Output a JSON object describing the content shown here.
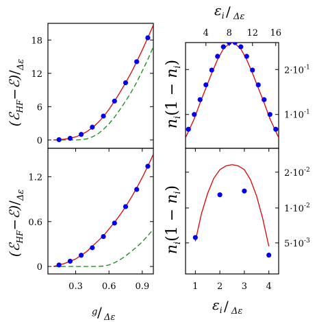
{
  "chart_data": [
    {
      "panel": "top-left",
      "type": "scatter",
      "ylabel": "(ℰHF−ℰ)/Δε",
      "ylim": [
        -1.5,
        21
      ],
      "xlim": [
        0.05,
        1.0
      ],
      "yticks": [
        "0",
        "6",
        "12",
        "18"
      ],
      "ytick_values": [
        0,
        6,
        12,
        18
      ],
      "colors": {
        "points": "#0000ee",
        "solid": "#dd0000",
        "dashed": "#118811"
      },
      "points": {
        "x": [
          0.15,
          0.25,
          0.35,
          0.45,
          0.55,
          0.65,
          0.75,
          0.85,
          0.95
        ],
        "y": [
          0.05,
          0.3,
          1.0,
          2.3,
          4.3,
          7.0,
          10.3,
          14.1,
          18.4
        ]
      },
      "solid_curve": {
        "x": [
          0.1,
          0.15,
          0.2,
          0.25,
          0.3,
          0.35,
          0.4,
          0.45,
          0.5,
          0.55,
          0.6,
          0.65,
          0.7,
          0.75,
          0.8,
          0.85,
          0.9,
          0.95,
          1.0
        ],
        "y": [
          0,
          0.05,
          0.15,
          0.3,
          0.55,
          0.95,
          1.5,
          2.2,
          3.1,
          4.2,
          5.5,
          7.0,
          8.6,
          10.3,
          12.1,
          14.1,
          16.2,
          18.4,
          20.7
        ]
      },
      "dashed_curve": {
        "x": [
          0.1,
          0.2,
          0.3,
          0.35,
          0.4,
          0.45,
          0.5,
          0.55,
          0.6,
          0.65,
          0.7,
          0.75,
          0.8,
          0.85,
          0.9,
          0.95,
          1.0
        ],
        "y": [
          0,
          0,
          0,
          0.05,
          0.2,
          0.55,
          1.1,
          1.9,
          2.9,
          4.1,
          5.5,
          7.0,
          8.6,
          10.4,
          12.4,
          14.5,
          16.8
        ]
      }
    },
    {
      "panel": "bottom-left",
      "type": "scatter",
      "xlabel": "g/Δε",
      "ylabel": "(ℰHF−ℰ)/Δε",
      "ylim": [
        -0.1,
        1.58
      ],
      "xlim": [
        0.05,
        1.0
      ],
      "xticks": [
        "0.3",
        "0.6",
        "0.9"
      ],
      "xtick_values": [
        0.3,
        0.6,
        0.9
      ],
      "yticks": [
        "0",
        "0.6",
        "1.2"
      ],
      "ytick_values": [
        0,
        0.6,
        1.2
      ],
      "colors": {
        "points": "#0000ee",
        "solid": "#dd0000",
        "dashed": "#118811"
      },
      "points": {
        "x": [
          0.15,
          0.25,
          0.35,
          0.45,
          0.55,
          0.65,
          0.75,
          0.85,
          0.95
        ],
        "y": [
          0.02,
          0.07,
          0.15,
          0.25,
          0.4,
          0.58,
          0.8,
          1.03,
          1.34
        ]
      },
      "solid_curve": {
        "x": [
          0.1,
          0.15,
          0.2,
          0.25,
          0.3,
          0.35,
          0.4,
          0.45,
          0.5,
          0.55,
          0.6,
          0.65,
          0.7,
          0.75,
          0.8,
          0.85,
          0.9,
          0.95,
          1.0
        ],
        "y": [
          0,
          0.02,
          0.04,
          0.07,
          0.1,
          0.15,
          0.2,
          0.27,
          0.34,
          0.41,
          0.5,
          0.59,
          0.69,
          0.8,
          0.92,
          1.05,
          1.19,
          1.34,
          1.5
        ]
      },
      "dashed_curve": {
        "x": [
          0.1,
          0.2,
          0.3,
          0.4,
          0.5,
          0.55,
          0.6,
          0.65,
          0.7,
          0.75,
          0.8,
          0.85,
          0.9,
          0.95,
          1.0
        ],
        "y": [
          0,
          0,
          0,
          0,
          0,
          0.005,
          0.02,
          0.05,
          0.09,
          0.14,
          0.2,
          0.26,
          0.33,
          0.41,
          0.5
        ]
      }
    },
    {
      "panel": "top-right",
      "type": "scatter",
      "x2label": "εi/Δε",
      "ylabel": "ni(1−ni)",
      "xlim": [
        0.5,
        16.5
      ],
      "ylim": [
        0,
        1
      ],
      "xticks_top": [
        "4",
        "8",
        "12",
        "16"
      ],
      "xtick_values": [
        4,
        8,
        12,
        16
      ],
      "yticks_right": [
        "2·10-1",
        "1·10-1"
      ],
      "ytick_fractions": [
        0.745,
        0.32
      ],
      "colors": {
        "points": "#0000ee",
        "solid": "#dd0000"
      },
      "points": {
        "x": [
          1,
          2,
          3,
          4,
          5,
          6,
          7,
          8,
          9,
          10,
          11,
          12,
          13,
          14,
          15,
          16
        ],
        "y": [
          0.18,
          0.32,
          0.46,
          0.6,
          0.74,
          0.87,
          0.96,
          1.0,
          1.0,
          0.96,
          0.87,
          0.74,
          0.6,
          0.46,
          0.32,
          0.18
        ]
      },
      "solid_curve": {
        "x": [
          0.5,
          2,
          3,
          4,
          5,
          6,
          7,
          8,
          8.5,
          9,
          10,
          11,
          12,
          13,
          14,
          15,
          16.5
        ],
        "y": [
          0.1,
          0.28,
          0.43,
          0.57,
          0.71,
          0.84,
          0.94,
          0.99,
          1.0,
          0.99,
          0.94,
          0.84,
          0.71,
          0.57,
          0.43,
          0.28,
          0.1
        ]
      }
    },
    {
      "panel": "bottom-right",
      "type": "scatter",
      "xlabel": "εi/Δε",
      "ylabel": "ni(1−ni)",
      "xlim": [
        0.6,
        4.4
      ],
      "ylim": [
        0,
        1
      ],
      "xticks": [
        "1",
        "2",
        "3",
        "4"
      ],
      "xtick_values": [
        1,
        2,
        3,
        4
      ],
      "yticks_right": [
        "2·10-2",
        "1·10-2",
        "5·10-3"
      ],
      "ytick_fractions": [
        0.81,
        0.525,
        0.247
      ],
      "colors": {
        "points": "#0000ee",
        "solid": "#dd0000"
      },
      "points": {
        "x": [
          1,
          2,
          3,
          4
        ],
        "y": [
          0.29,
          0.63,
          0.66,
          0.15
        ]
      },
      "solid_curve": {
        "x": [
          1.0,
          1.25,
          1.5,
          1.75,
          2.0,
          2.25,
          2.5,
          2.75,
          3.0,
          3.25,
          3.5,
          3.75,
          4.0
        ],
        "y": [
          0.26,
          0.48,
          0.64,
          0.76,
          0.83,
          0.86,
          0.87,
          0.86,
          0.83,
          0.75,
          0.62,
          0.44,
          0.22
        ]
      }
    }
  ]
}
